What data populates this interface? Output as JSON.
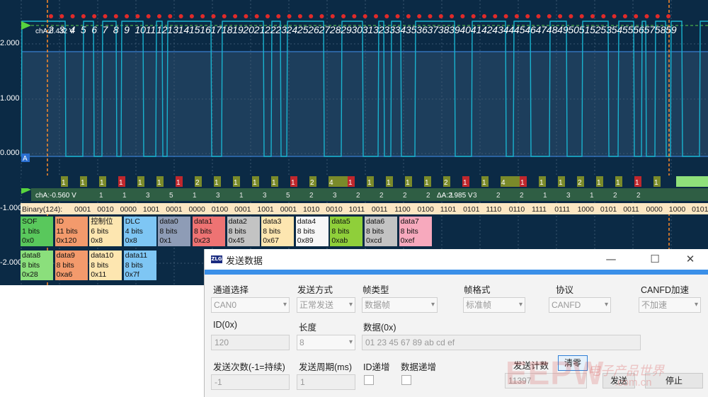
{
  "scope": {
    "y_labels": [
      "2.000",
      "1.000",
      "0.000",
      "-1.000",
      "-2.000"
    ],
    "channel_label": "chA:0.432 V",
    "cursor_a_value": "chA:-0.560 V",
    "cursor_delta": "ΔA:2.985 V",
    "trigger_marker": "A",
    "decode_header": "Binary(124):",
    "binary_groups": [
      "0001",
      "0010",
      "0000",
      "1001",
      "0001",
      "0000",
      "0100",
      "0001",
      "1001",
      "0001",
      "1010",
      "0010",
      "1011",
      "0011",
      "1100",
      "0100",
      "1101",
      "0101",
      "1110",
      "0110",
      "1111",
      "0111",
      "1000",
      "0101",
      "0011",
      "0000",
      "1000",
      "0101"
    ],
    "edge_numbers": [
      "2",
      "3",
      "4",
      "5",
      "6",
      "7",
      "8",
      "9",
      "10",
      "11",
      "12",
      "13",
      "14",
      "15",
      "16",
      "17",
      "18",
      "19",
      "20",
      "21",
      "22",
      "23",
      "24",
      "25",
      "26",
      "27",
      "28",
      "29",
      "30",
      "31",
      "32",
      "33",
      "34",
      "35",
      "36",
      "37",
      "38",
      "39",
      "40",
      "41",
      "42",
      "43",
      "44",
      "45",
      "46",
      "47",
      "48",
      "49",
      "50",
      "51",
      "52",
      "53",
      "54",
      "55",
      "56",
      "57",
      "58",
      "59"
    ],
    "bit_labels": [
      "1",
      "1",
      "1",
      "1",
      "1",
      "1",
      "1",
      "2",
      "1",
      "1",
      "1",
      "1",
      "1",
      "2",
      "4",
      "1",
      "1",
      "1",
      "1",
      "1",
      "2",
      "1",
      "1",
      "4",
      "1",
      "1",
      "1",
      "2",
      "1",
      "1",
      "1",
      "1"
    ],
    "level_labels": [
      "1",
      "1",
      "3",
      "5",
      "1",
      "3",
      "1",
      "3",
      "5",
      "2",
      "3",
      "2",
      "2",
      "2",
      "2",
      "1",
      "3",
      "2",
      "2",
      "1",
      "3",
      "1",
      "2",
      "2"
    ],
    "fields_row1": [
      {
        "name": "SOF",
        "bits": "1 bits",
        "value": "0x0",
        "color": "#59c85c"
      },
      {
        "name": "ID",
        "bits": "11 bits",
        "value": "0x120",
        "color": "#f39a6c"
      },
      {
        "name": "控制位",
        "bits": "6 bits",
        "value": "0x8",
        "color": "#fde6b0"
      },
      {
        "name": "DLC",
        "bits": "4 bits",
        "value": "0x8",
        "color": "#7ec6f4"
      },
      {
        "name": "data0",
        "bits": "8 bits",
        "value": "0x1",
        "color": "#8e9cb6"
      },
      {
        "name": "data1",
        "bits": "8 bits",
        "value": "0x23",
        "color": "#ee7373"
      },
      {
        "name": "data2",
        "bits": "8 bits",
        "value": "0x45",
        "color": "#c3c3c3"
      },
      {
        "name": "data3",
        "bits": "8 bits",
        "value": "0x67",
        "color": "#fde6b0"
      },
      {
        "name": "data4",
        "bits": "8 bits",
        "value": "0x89",
        "color": "#f7f7f7"
      },
      {
        "name": "data5",
        "bits": "8 bits",
        "value": "0xab",
        "color": "#8fcf3a"
      },
      {
        "name": "data6",
        "bits": "8 bits",
        "value": "0xcd",
        "color": "#c3c3c3"
      },
      {
        "name": "data7",
        "bits": "8 bits",
        "value": "0xef",
        "color": "#f7a9bd"
      }
    ],
    "fields_row2": [
      {
        "name": "data8",
        "bits": "8 bits",
        "value": "0x28",
        "color": "#8bdf7c"
      },
      {
        "name": "data9",
        "bits": "8 bits",
        "value": "0xa6",
        "color": "#f39a6c"
      },
      {
        "name": "data10",
        "bits": "8 bits",
        "value": "0x11",
        "color": "#fde6b0"
      },
      {
        "name": "data11",
        "bits": "8 bits",
        "value": "0x7f",
        "color": "#7ec6f4"
      }
    ]
  },
  "dialog": {
    "title": "发送数据",
    "logo_text": "ZLG",
    "labels": {
      "channel": "通道选择",
      "send_mode": "发送方式",
      "frame_type": "帧类型",
      "frame_format": "帧格式",
      "protocol": "协议",
      "canfd_accel": "CANFD加速",
      "id": "ID(0x)",
      "length": "长度",
      "data": "数据(0x)",
      "send_count": "发送次数(-1=持续)",
      "send_period": "发送周期(ms)",
      "id_increment": "ID递增",
      "data_increment": "数据递增",
      "send_counter": "发送计数"
    },
    "values": {
      "channel": "CAN0",
      "send_mode": "正常发送",
      "frame_type": "数据帧",
      "frame_format": "标准帧",
      "protocol": "CANFD",
      "canfd_accel": "不加速",
      "id": "120",
      "length": "8",
      "data": "01 23 45 67 89 ab cd ef",
      "send_count": "-1",
      "send_period": "1",
      "send_counter": "11397"
    },
    "buttons": {
      "clear": "清零",
      "send": "发送",
      "stop": "停止",
      "minimize": "—",
      "maximize": "☐",
      "close": "✕"
    }
  },
  "watermark": {
    "main": "EEPW",
    "cn": "电子产品世界",
    "url": ".com.cn"
  },
  "colors": {
    "scope_bg": "#0b2a45",
    "trace": "#19b3cf",
    "accent": "#3a8fe8"
  }
}
